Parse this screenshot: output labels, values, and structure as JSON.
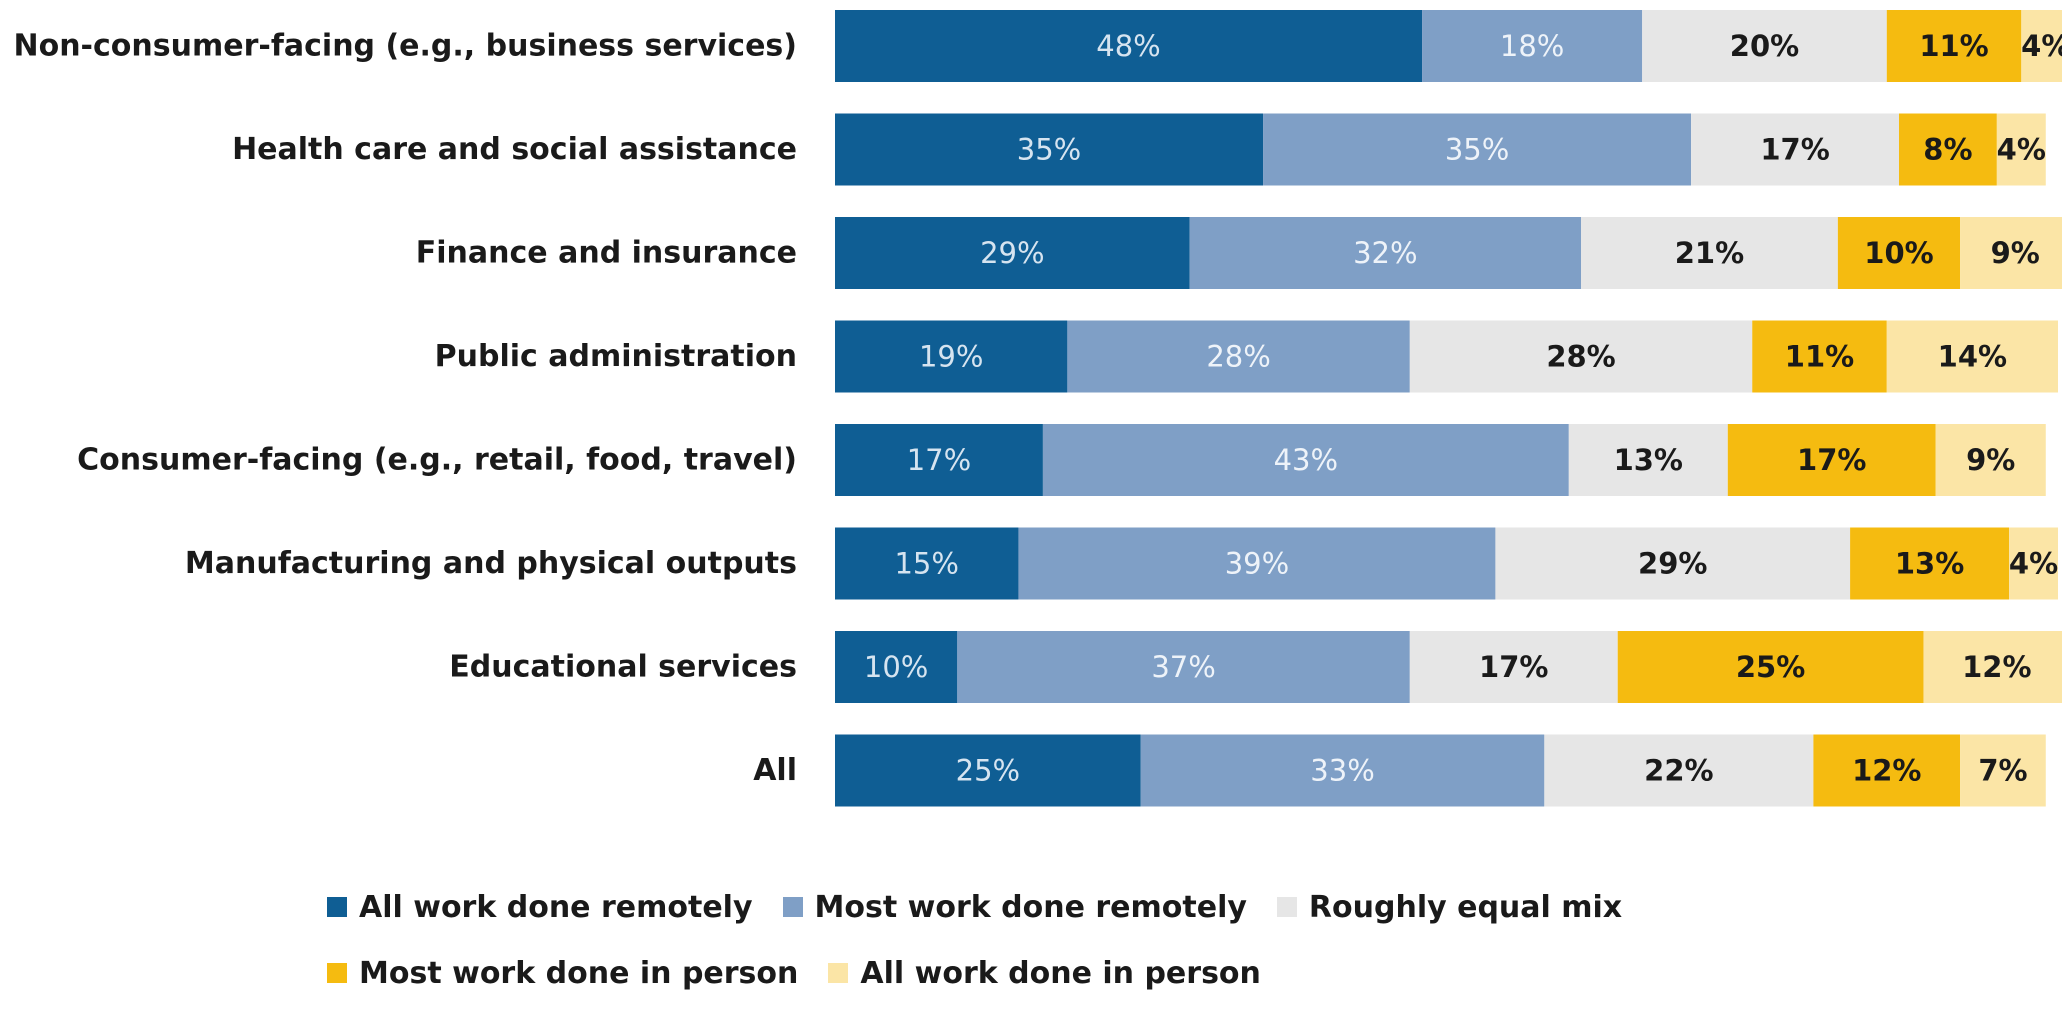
{
  "chart_data": {
    "type": "bar",
    "orientation": "horizontal",
    "stacked": true,
    "categories": [
      "Non-consumer-facing (e.g., business services)",
      "Health care and social assistance",
      "Finance and insurance",
      "Public administration",
      "Consumer-facing (e.g., retail, food, travel)",
      "Manufacturing and physical outputs",
      "Educational services",
      "All"
    ],
    "series": [
      {
        "name": "All work done remotely",
        "color": "#0f5e94",
        "label_color": "#d6e4f0",
        "values": [
          48,
          35,
          29,
          19,
          17,
          15,
          10,
          25
        ]
      },
      {
        "name": "Most work done remotely",
        "color": "#7f9fc6",
        "label_color": "#eef3f9",
        "values": [
          18,
          35,
          32,
          28,
          43,
          39,
          37,
          33
        ]
      },
      {
        "name": "Roughly equal mix",
        "color": "#e6e6e6",
        "label_color": "#1a1a1a",
        "values": [
          20,
          17,
          21,
          28,
          13,
          29,
          17,
          22
        ]
      },
      {
        "name": "Most work done in person",
        "color": "#f5bb10",
        "label_color": "#1a1a1a",
        "values": [
          11,
          8,
          10,
          11,
          17,
          13,
          25,
          12
        ]
      },
      {
        "name": "All work done in person",
        "color": "#fbe5a6",
        "label_color": "#1a1a1a",
        "values": [
          4,
          4,
          9,
          14,
          9,
          4,
          12,
          7
        ]
      }
    ],
    "value_suffix": "%",
    "xlim": [
      0,
      100
    ],
    "grid": false,
    "legend_position": "bottom",
    "title": "",
    "xlabel": "",
    "ylabel": ""
  },
  "legend": {
    "rows": [
      [
        0,
        1,
        2
      ],
      [
        3,
        4
      ]
    ]
  }
}
